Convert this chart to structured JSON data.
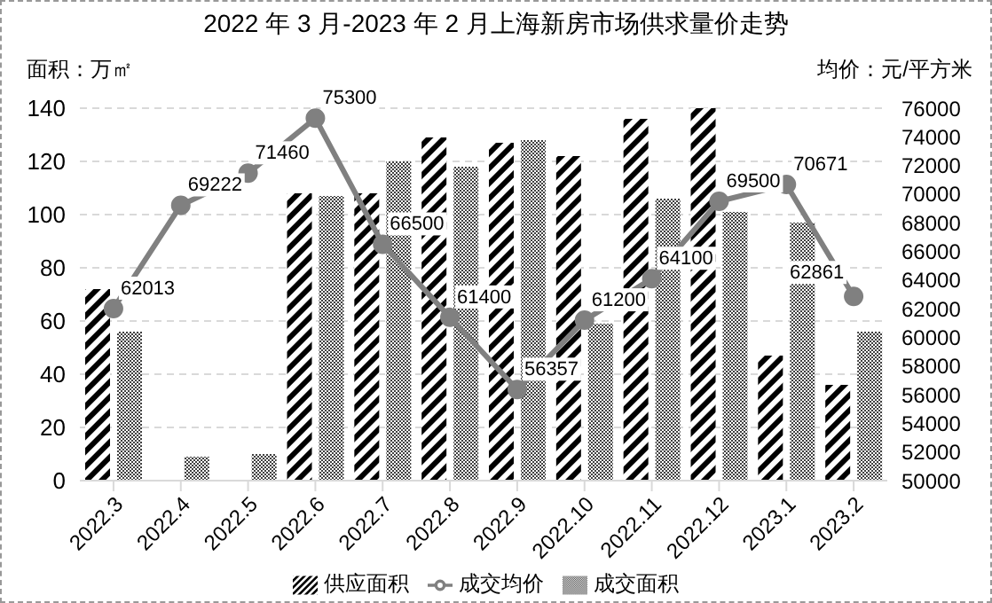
{
  "chart_data": {
    "type": "bar",
    "title": "2022 年 3 月-2023 年 2 月上海新房市场供求量价走势",
    "ylabel": "面积：万㎡",
    "y2label": "均价：元/平方米",
    "categories": [
      "2022.3",
      "2022.4",
      "2022.5",
      "2022.6",
      "2022.7",
      "2022.8",
      "2022.9",
      "2022.10",
      "2022.11",
      "2022.12",
      "2023.1",
      "2023.2"
    ],
    "series": [
      {
        "name": "供应面积",
        "color": "#000000",
        "values": [
          72,
          0,
          0,
          108,
          108,
          129,
          127,
          122,
          136,
          140,
          47,
          36
        ]
      },
      {
        "name": "成交面积",
        "color": "#404040",
        "values": [
          56,
          9,
          10,
          107,
          120,
          118,
          128,
          59,
          106,
          101,
          97,
          56
        ]
      },
      {
        "name": "成交均价",
        "type": "line",
        "axis": "y2",
        "color": "#808080",
        "marker": "circle",
        "values": [
          62013,
          69222,
          71460,
          75300,
          66500,
          61400,
          56357,
          61200,
          64100,
          69500,
          70671,
          62861
        ],
        "value_labels": [
          "62013",
          "69222",
          "71460",
          "75300",
          "66500",
          "61400",
          "56357",
          "61200",
          "64100",
          "69500",
          "70671",
          "62861"
        ]
      }
    ],
    "ylim": [
      0,
      140
    ],
    "yticks": [
      0,
      20,
      40,
      60,
      80,
      100,
      120,
      140
    ],
    "y2lim": [
      50000,
      76000
    ],
    "y2ticks": [
      50000,
      52000,
      54000,
      56000,
      58000,
      60000,
      62000,
      64000,
      66000,
      68000,
      70000,
      72000,
      74000,
      76000
    ],
    "grid": "y",
    "legend": "bottom"
  }
}
